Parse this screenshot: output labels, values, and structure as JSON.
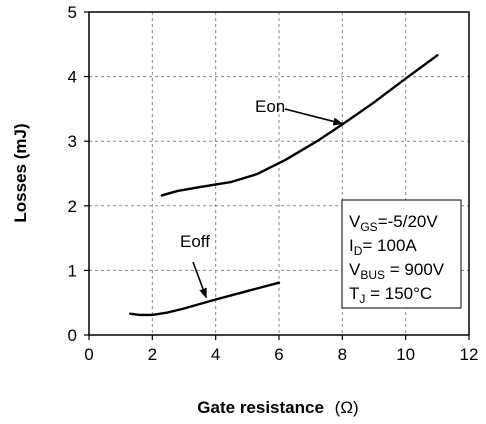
{
  "chart_data": {
    "type": "line",
    "xlabel": "Gate resistance",
    "xlabel_unit": "(Ω)",
    "ylabel": "Losses  (mJ)",
    "xlim": [
      0,
      12
    ],
    "ylim": [
      0,
      5
    ],
    "x_ticks": [
      "0",
      "2",
      "4",
      "6",
      "8",
      "10",
      "12"
    ],
    "y_ticks": [
      "0",
      "1",
      "2",
      "3",
      "4",
      "5"
    ],
    "grid": true,
    "series": [
      {
        "name": "Eon",
        "x": [
          2.3,
          2.8,
          3.5,
          4.5,
          5.3,
          6.2,
          7.2,
          8.0,
          9.0,
          10.0,
          11.0
        ],
        "y": [
          2.16,
          2.23,
          2.29,
          2.37,
          2.49,
          2.71,
          3.0,
          3.26,
          3.6,
          3.97,
          4.33
        ]
      },
      {
        "name": "Eoff",
        "x": [
          1.3,
          1.6,
          2.0,
          2.5,
          3.0,
          4.0,
          5.0,
          6.0
        ],
        "y": [
          0.33,
          0.31,
          0.31,
          0.35,
          0.41,
          0.55,
          0.68,
          0.81
        ]
      }
    ],
    "annotations": [
      {
        "text": "Eon",
        "target": [
          8.0,
          3.24
        ]
      },
      {
        "text": "Eoff",
        "target": [
          3.7,
          0.55
        ]
      }
    ],
    "conditions": [
      {
        "main": "V",
        "sub": "GS",
        "rest": "=-5/20V"
      },
      {
        "main": "I",
        "sub": "D",
        "rest": "= 100A"
      },
      {
        "main": "V",
        "sub": "BUS",
        "rest": " = 900V"
      },
      {
        "main": "T",
        "sub": "J",
        "rest": " = 150°C"
      }
    ]
  }
}
